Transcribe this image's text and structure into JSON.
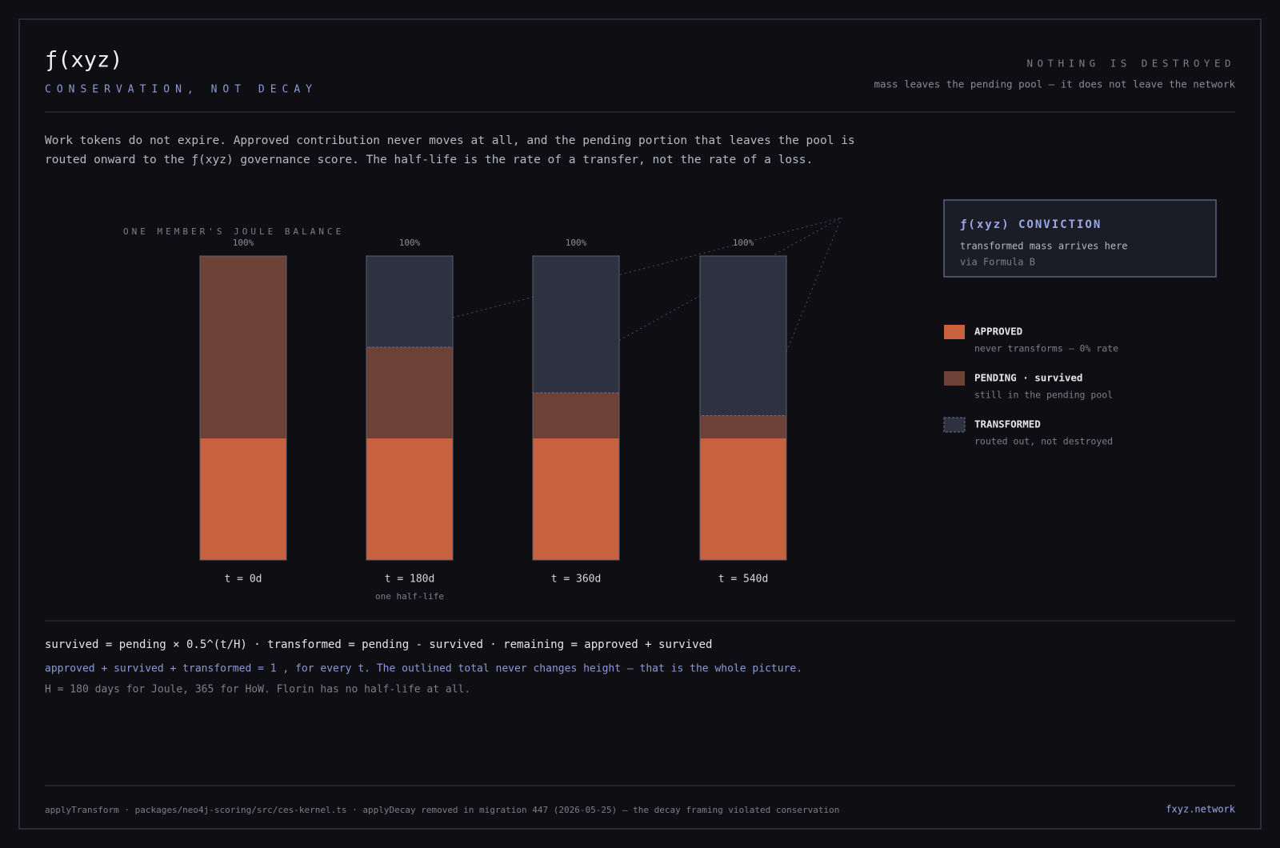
{
  "header": {
    "title": "ƒ(xyz)",
    "subtitle": "CONSERVATION, NOT DECAY",
    "kicker": "NOTHING IS DESTROYED",
    "tagline": "mass leaves the pending pool — it does not leave the network"
  },
  "intro": [
    "Work tokens do not expire. Approved contribution never moves at all, and the pending portion that leaves the pool is",
    "routed onward to the ƒ(xyz) governance score. The half-life is the rate of a transfer, not the rate of a loss."
  ],
  "chart_data": {
    "type": "stacked_bar",
    "title": "ONE MEMBER'S JOULE BALANCE",
    "categories": [
      "t = 0d",
      "t = 180d",
      "t = 360d",
      "t = 540d"
    ],
    "category_notes": [
      null,
      "one half-life",
      null,
      null
    ],
    "totals": [
      100,
      100,
      100,
      100
    ],
    "total_labels": [
      "100%",
      "100%",
      "100%",
      "100%"
    ],
    "ylim": [
      0,
      100
    ],
    "series": [
      {
        "name": "APPROVED",
        "note": "never transforms — 0% rate",
        "color": "#c8623e",
        "values": [
          40,
          40,
          40,
          40
        ]
      },
      {
        "name": "PENDING · survived",
        "note": "still in the pending pool",
        "color": "#6e4136",
        "values": [
          60,
          30,
          15,
          7.5
        ]
      },
      {
        "name": "TRANSFORMED",
        "note": "routed out, not destroyed",
        "color": "#2e3140",
        "values": [
          0,
          30,
          45,
          52.5
        ]
      }
    ]
  },
  "conviction": {
    "title": "ƒ(xyz) CONVICTION",
    "line1": "transformed mass arrives here",
    "line2": "via Formula B"
  },
  "formula": {
    "main": "survived = pending × 0.5^(t/H) · transformed = pending - survived · remaining = approved + survived",
    "invariant": "approved + survived + transformed = 1 , for every t. The outlined total never changes height — that is the whole picture.",
    "note": "H = 180 days for Joule, 365 for HoW. Florin has no half-life at all."
  },
  "footer": {
    "source": "applyTransform · packages/neo4j-scoring/src/ces-kernel.ts · applyDecay removed in migration 447 (2026-05-25) — the decay framing violated conservation",
    "site": "fxyz.network"
  }
}
